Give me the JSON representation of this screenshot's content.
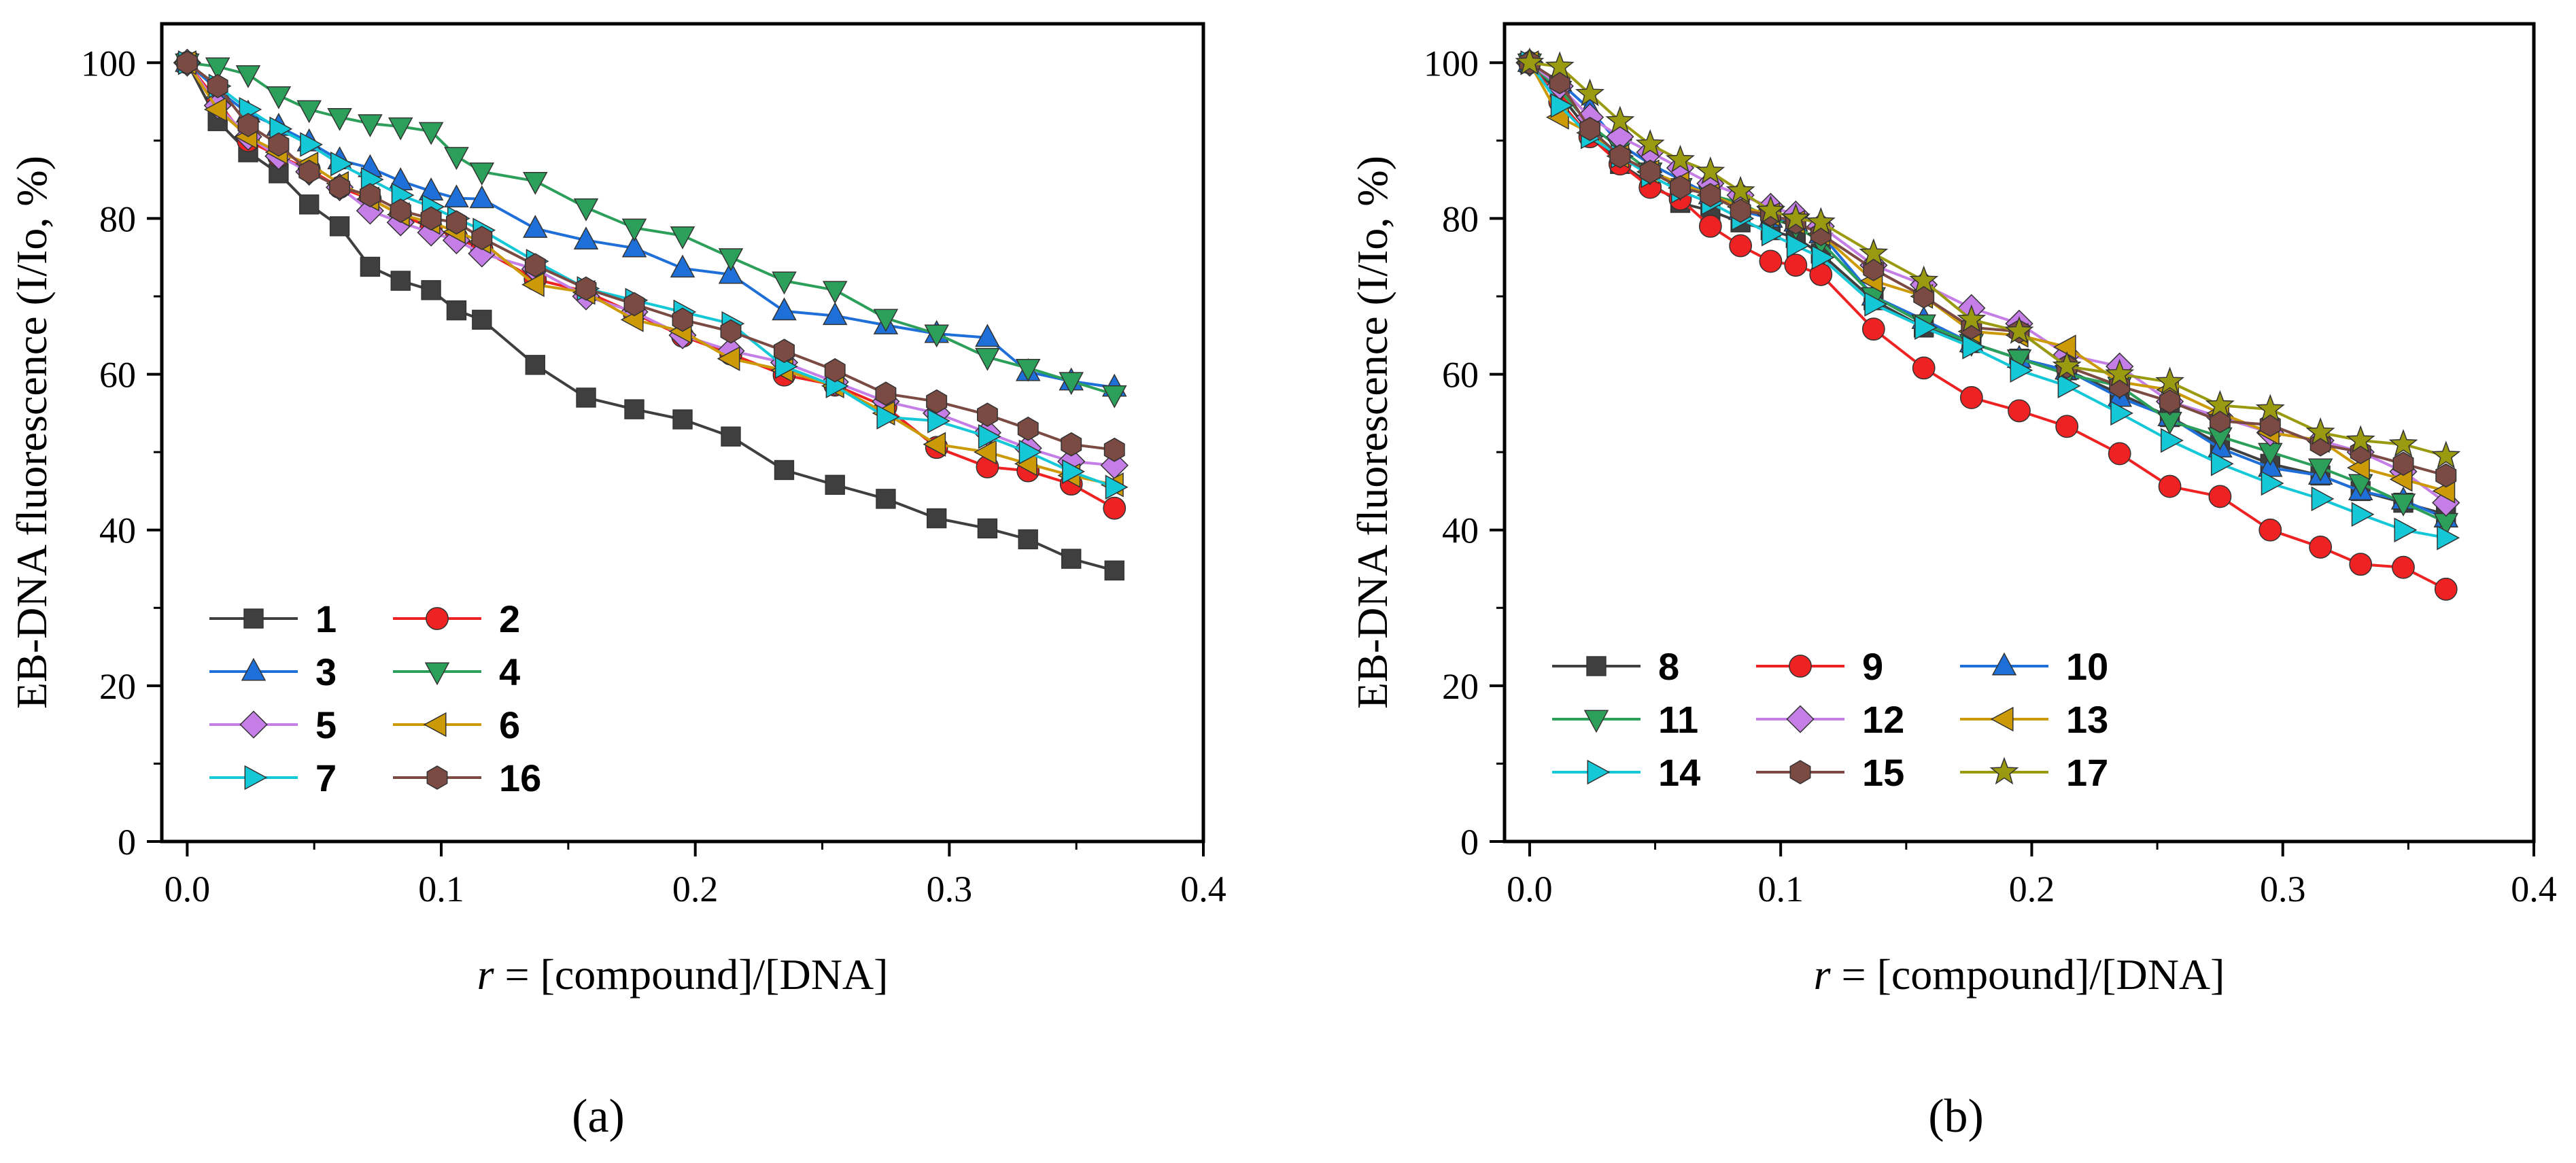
{
  "chart_data": [
    {
      "panel": "a",
      "panel_label": "(a)",
      "type": "line",
      "xlabel_var": "r",
      "xlabel_rest": " = [compound]/[DNA]",
      "ylabel": "EB-DNA fluorescence (I/Io, %)",
      "xlim": [
        -0.01,
        0.4
      ],
      "ylim": [
        0,
        105
      ],
      "xticks": [
        0.0,
        0.1,
        0.2,
        0.3,
        0.4
      ],
      "xtick_labels": [
        "0.0",
        "0.1",
        "0.2",
        "0.3",
        "0.4"
      ],
      "yticks": [
        0,
        20,
        40,
        60,
        80,
        100
      ],
      "ytick_labels": [
        "0",
        "20",
        "40",
        "60",
        "80",
        "100"
      ],
      "legend_columns": 2,
      "x": [
        0,
        0.012,
        0.024,
        0.036,
        0.048,
        0.06,
        0.072,
        0.084,
        0.096,
        0.106,
        0.116,
        0.137,
        0.157,
        0.176,
        0.195,
        0.214,
        0.235,
        0.255,
        0.275,
        0.295,
        0.315,
        0.331,
        0.348,
        0.365
      ],
      "series": [
        {
          "name": "1",
          "color": "#3f3f3f",
          "marker": "square",
          "values": [
            100,
            92.5,
            88.5,
            85.8,
            81.8,
            79,
            73.8,
            72,
            70.8,
            68.2,
            67,
            61.2,
            57,
            55.5,
            54.2,
            52,
            47.7,
            45.8,
            44,
            41.5,
            40.2,
            38.8,
            36.3,
            34.8
          ]
        },
        {
          "name": "2",
          "color": "#ee2222",
          "marker": "circle",
          "values": [
            100,
            95,
            90,
            88,
            86.3,
            84,
            82.5,
            80.5,
            78.8,
            77.6,
            76,
            72.2,
            70.6,
            67.8,
            64.9,
            62.6,
            59.9,
            58.6,
            55.8,
            50.6,
            48.1,
            47.6,
            45.9,
            42.8
          ]
        },
        {
          "name": "3",
          "color": "#1f6fd8",
          "marker": "triangle-up",
          "values": [
            100,
            96.5,
            93.5,
            91.8,
            89.8,
            87.5,
            86.5,
            84.8,
            83.5,
            82.6,
            82.5,
            78.7,
            77.2,
            76.2,
            73.6,
            72.8,
            68.1,
            67.5,
            66.3,
            65.2,
            64.7,
            60.3,
            59.1,
            58.3
          ]
        },
        {
          "name": "4",
          "color": "#2ca05a",
          "marker": "triangle-down",
          "values": [
            100,
            99.5,
            98.5,
            95.8,
            94,
            93,
            92.2,
            91.8,
            91.2,
            88,
            86,
            84.8,
            81.4,
            78.8,
            77.8,
            75,
            72,
            70.8,
            67.2,
            65.2,
            62.2,
            60.8,
            59.1,
            57.4
          ]
        },
        {
          "name": "5",
          "color": "#c47ee6",
          "marker": "diamond",
          "values": [
            100,
            94.5,
            90.5,
            88,
            86,
            84,
            81,
            79.5,
            78.2,
            77.2,
            75.5,
            73.5,
            70,
            68,
            65,
            63,
            61.5,
            59,
            56.5,
            55,
            52.5,
            50.5,
            48.8,
            48.3
          ]
        },
        {
          "name": "6",
          "color": "#cc9a06",
          "marker": "triangle-left",
          "values": [
            100,
            94,
            90.5,
            88.5,
            87,
            84.5,
            82.5,
            80.5,
            79.5,
            78.3,
            77,
            71.5,
            70.5,
            67,
            65.5,
            62,
            60.5,
            58.5,
            55,
            51,
            50,
            48.5,
            47,
            45.8
          ]
        },
        {
          "name": "7",
          "color": "#14c8d8",
          "marker": "triangle-right",
          "values": [
            100,
            97,
            94,
            91.5,
            89.5,
            87,
            85,
            83,
            81.5,
            80,
            78.5,
            74.5,
            71,
            69.5,
            68,
            66.5,
            61,
            58.5,
            54.5,
            54,
            52,
            50,
            47.5,
            45.5
          ]
        },
        {
          "name": "16",
          "color": "#7a4a43",
          "marker": "hexagon",
          "values": [
            100,
            97,
            92,
            89.5,
            86,
            84,
            83,
            81,
            80,
            79.5,
            77.5,
            74,
            71,
            69,
            67,
            65.5,
            63,
            60.5,
            57.5,
            56.5,
            54.8,
            53,
            51,
            50.3
          ]
        }
      ]
    },
    {
      "panel": "b",
      "panel_label": "(b)",
      "type": "line",
      "xlabel_var": "r",
      "xlabel_rest": " = [compound]/[DNA]",
      "ylabel": "EB-DNA fluorescence (I/Io, %)",
      "xlim": [
        -0.01,
        0.4
      ],
      "ylim": [
        0,
        105
      ],
      "xticks": [
        0.0,
        0.1,
        0.2,
        0.3,
        0.4
      ],
      "xtick_labels": [
        "0.0",
        "0.1",
        "0.2",
        "0.3",
        "0.4"
      ],
      "yticks": [
        0,
        20,
        40,
        60,
        80,
        100
      ],
      "ytick_labels": [
        "0",
        "20",
        "40",
        "60",
        "80",
        "100"
      ],
      "legend_columns": 3,
      "x": [
        0,
        0.012,
        0.024,
        0.036,
        0.048,
        0.06,
        0.072,
        0.084,
        0.096,
        0.106,
        0.116,
        0.137,
        0.157,
        0.176,
        0.195,
        0.214,
        0.235,
        0.255,
        0.275,
        0.295,
        0.315,
        0.331,
        0.348,
        0.365
      ],
      "series": [
        {
          "name": "8",
          "color": "#3f3f3f",
          "marker": "square",
          "values": [
            100,
            96,
            91,
            87,
            84.5,
            82,
            81,
            79.5,
            78.5,
            77.5,
            75.5,
            69.5,
            66,
            64,
            62,
            60.5,
            57.5,
            54.5,
            51,
            48.5,
            47,
            45,
            43.5,
            42
          ]
        },
        {
          "name": "9",
          "color": "#ee2222",
          "marker": "circle",
          "values": [
            100,
            95,
            90.5,
            87,
            84,
            82.5,
            79,
            76.5,
            74.5,
            74,
            72.8,
            65.8,
            60.8,
            57,
            55.3,
            53.3,
            49.8,
            45.6,
            44.3,
            40,
            37.8,
            35.6,
            35.2,
            32.4
          ]
        },
        {
          "name": "10",
          "color": "#1f6fd8",
          "marker": "triangle-up",
          "values": [
            100,
            97.5,
            94,
            89.5,
            87,
            85,
            83,
            81,
            80,
            79.5,
            78,
            70,
            67,
            64,
            62,
            60.5,
            57,
            54.5,
            50.5,
            48,
            47,
            45,
            43.8,
            41.5
          ]
        },
        {
          "name": "11",
          "color": "#2ca05a",
          "marker": "triangle-down",
          "values": [
            100,
            96.5,
            92,
            89,
            86,
            84,
            83,
            82,
            80,
            79,
            77,
            70,
            66.5,
            64,
            62,
            60,
            58.5,
            54,
            52,
            50,
            48,
            46,
            43.5,
            41
          ]
        },
        {
          "name": "12",
          "color": "#c47ee6",
          "marker": "diamond",
          "values": [
            100,
            97,
            93,
            90.5,
            88.5,
            86.5,
            84.5,
            83,
            81.5,
            80.5,
            79,
            74,
            71.5,
            68.5,
            66.5,
            62.5,
            61,
            56.5,
            54.5,
            52.5,
            51.5,
            50,
            47.5,
            43.5
          ]
        },
        {
          "name": "13",
          "color": "#cc9a06",
          "marker": "triangle-left",
          "values": [
            100,
            93,
            91,
            88,
            86,
            84.5,
            83,
            81.5,
            80.5,
            79.5,
            78,
            72,
            70,
            65.5,
            65,
            63.5,
            59,
            58,
            55,
            52.5,
            51.5,
            48,
            46.5,
            45
          ]
        },
        {
          "name": "14",
          "color": "#14c8d8",
          "marker": "triangle-right",
          "values": [
            100,
            94.5,
            90.5,
            88,
            85.5,
            83.5,
            82,
            80,
            78,
            76.5,
            75,
            69,
            66,
            63.5,
            60.5,
            58.5,
            55,
            51.5,
            48.5,
            46,
            44,
            42,
            40,
            39
          ]
        },
        {
          "name": "15",
          "color": "#7a4a43",
          "marker": "hexagon",
          "values": [
            100,
            97.5,
            91.5,
            88,
            86,
            84,
            83,
            81,
            80.5,
            79.5,
            78,
            73.5,
            70,
            66,
            65.5,
            61,
            58.5,
            56.5,
            54,
            53.5,
            51,
            50,
            48.5,
            47
          ]
        },
        {
          "name": "17",
          "color": "#9a9a10",
          "marker": "star",
          "values": [
            100,
            99.5,
            96,
            92.5,
            89.5,
            87.5,
            86,
            83.5,
            81,
            80,
            79.5,
            75.5,
            72,
            67,
            65.5,
            61,
            60,
            59,
            56,
            55.5,
            52.5,
            51.5,
            51,
            49.5
          ]
        }
      ]
    }
  ]
}
